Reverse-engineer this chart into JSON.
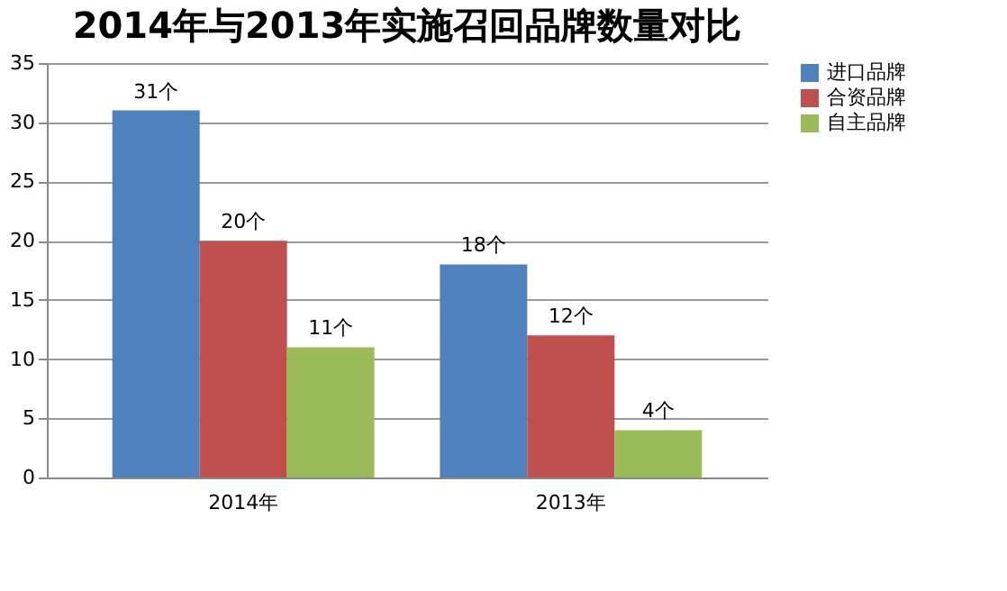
{
  "chart_data": {
    "type": "bar",
    "title": "2014年与2013年实施召回品牌数量对比",
    "categories": [
      "2014年",
      "2013年"
    ],
    "series": [
      {
        "name": "进口品牌",
        "color": "#4f81bd",
        "values": [
          31,
          18
        ],
        "value_labels": [
          "31个",
          "18个"
        ]
      },
      {
        "name": "合资品牌",
        "color": "#c0504d",
        "values": [
          20,
          12
        ],
        "value_labels": [
          "20个",
          "12个"
        ]
      },
      {
        "name": "自主品牌",
        "color": "#9bbb59",
        "values": [
          11,
          4
        ],
        "value_labels": [
          "11个",
          "4个"
        ]
      }
    ],
    "ylim": [
      0,
      35
    ],
    "yticks": [
      0,
      5,
      10,
      15,
      20,
      25,
      30,
      35
    ],
    "grid": "y",
    "legend": "right"
  }
}
